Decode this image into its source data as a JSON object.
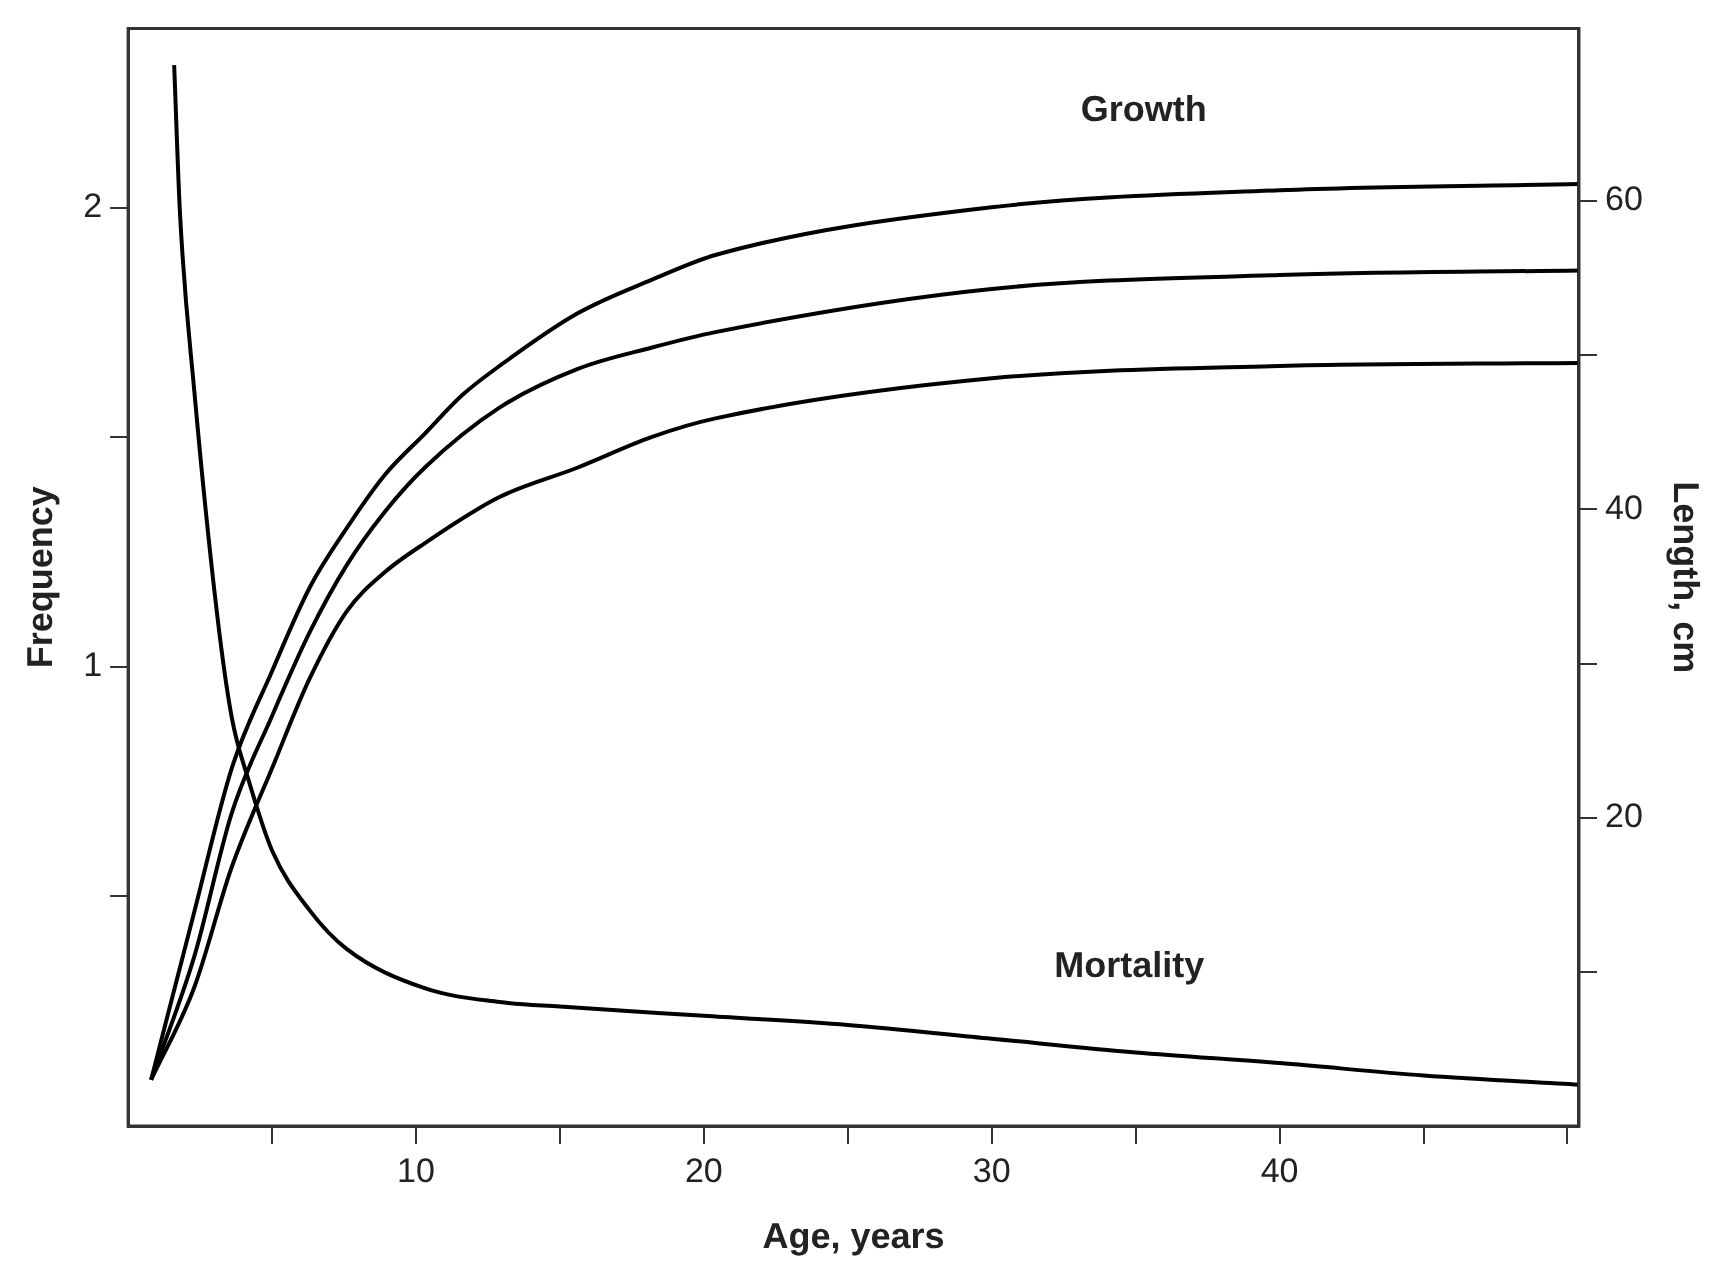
{
  "chart_data": {
    "type": "line",
    "xlabel": "Age, years",
    "ylabel": "Frequency",
    "y2label": "Length, cm",
    "annotations": [
      "Growth",
      "Mortality"
    ],
    "xlim": [
      0,
      50.4
    ],
    "xticks": [
      {
        "value": 5,
        "label": null
      },
      10,
      {
        "value": 15,
        "label": null
      },
      20,
      {
        "value": 25,
        "label": null
      },
      30,
      {
        "value": 35,
        "label": null
      },
      40,
      {
        "value": 45,
        "label": null
      },
      {
        "value": 50,
        "label": null
      }
    ],
    "ylim": [
      0,
      2.39
    ],
    "yticks": [
      {
        "value": 0.5,
        "label": null
      },
      1,
      {
        "value": 1.5,
        "label": null
      },
      2
    ],
    "y2lim": [
      0,
      71.2
    ],
    "y2ticks": [
      {
        "value": 10,
        "label": null
      },
      20,
      {
        "value": 30,
        "label": null
      },
      40,
      {
        "value": 50,
        "label": null
      },
      60
    ],
    "grid": false,
    "legend": false,
    "marker": "none",
    "line_style": "solid",
    "series": [
      {
        "color": "#000000",
        "x": [
          1.6,
          1.8,
          2.3,
          3.1,
          3.6,
          4.2,
          5,
          6.3,
          7.6,
          10.3,
          12.9,
          15,
          20,
          25,
          30,
          35,
          40,
          45,
          50.4
        ],
        "values": [
          2.31,
          1.99,
          1.6,
          1.11,
          0.89,
          0.75,
          0.6,
          0.47,
          0.385,
          0.3,
          0.27,
          0.26,
          0.24,
          0.22,
          0.19,
          0.16,
          0.137,
          0.11,
          0.09
        ]
      },
      {
        "color": "#000000",
        "axis": "y2",
        "x": [
          0.8,
          2.3,
          3.6,
          5,
          6.3,
          7.6,
          8.9,
          10.3,
          11.6,
          12.9,
          15.6,
          18.2,
          20.4,
          30,
          40,
          50.4
        ],
        "values": [
          3,
          13.9,
          23.2,
          29.5,
          34.9,
          38.8,
          42.2,
          44.9,
          47.4,
          49.3,
          52.7,
          54.9,
          56.5,
          59.6,
          60.7,
          61.1
        ]
      },
      {
        "color": "#000000",
        "axis": "y2",
        "x": [
          0.8,
          2.3,
          3.6,
          5,
          6.3,
          7.6,
          8.9,
          10.3,
          12.9,
          15.6,
          18.2,
          20.4,
          30,
          40,
          50.4
        ],
        "values": [
          3,
          11,
          20.3,
          26.6,
          32,
          36.4,
          39.8,
          42.7,
          46.6,
          49.1,
          50.5,
          51.5,
          54.3,
          55.2,
          55.5
        ]
      },
      {
        "color": "#000000",
        "axis": "y2",
        "x": [
          0.8,
          2.3,
          3.6,
          5,
          6.3,
          7.6,
          8.9,
          10.3,
          12.9,
          15.6,
          18.2,
          20.4,
          30,
          40,
          50.4
        ],
        "values": [
          3,
          9,
          16.8,
          23.2,
          29,
          33.4,
          35.9,
          37.8,
          40.8,
          42.7,
          44.7,
          45.9,
          48.5,
          49.3,
          49.5
        ]
      }
    ]
  }
}
